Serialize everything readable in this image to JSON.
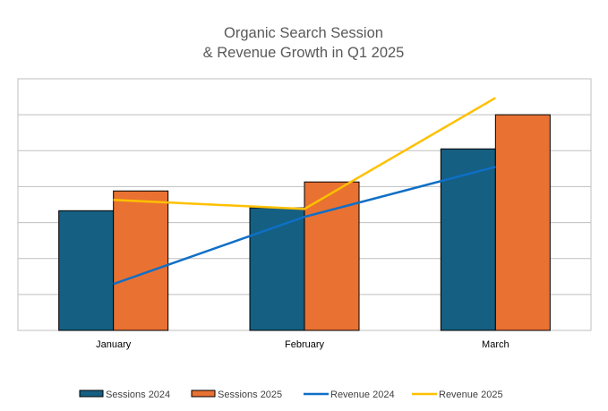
{
  "chart_data": {
    "type": "bar",
    "title_lines": [
      "Organic Search Session",
      "& Revenue Growth in Q1 2025"
    ],
    "categories": [
      "January",
      "February",
      "March"
    ],
    "xlabel": "",
    "ylabel": "",
    "ylim": [
      0,
      7
    ],
    "y_tick_labels_shown": false,
    "grid": true,
    "legend_position": "bottom",
    "series": [
      {
        "name": "Sessions 2024",
        "kind": "bar",
        "color": "#155F82",
        "values": [
          3.33,
          3.41,
          5.05
        ]
      },
      {
        "name": "Sessions 2025",
        "kind": "bar",
        "color": "#E97132",
        "values": [
          3.88,
          4.13,
          6.0
        ]
      },
      {
        "name": "Revenue 2024",
        "kind": "line",
        "color": "#0F6FC6",
        "values": [
          1.29,
          3.16,
          4.55
        ]
      },
      {
        "name": "Revenue 2025",
        "kind": "line",
        "color": "#FFC000",
        "values": [
          3.63,
          3.38,
          6.47
        ]
      }
    ]
  }
}
